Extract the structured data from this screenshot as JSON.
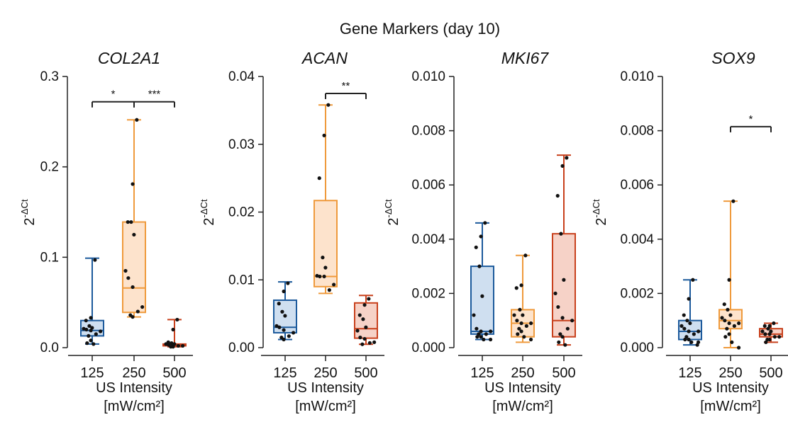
{
  "figure_title": "Gene Markers (day 10)",
  "colors": {
    "125": {
      "stroke": "#1c5a9c",
      "fill": "#cfdff0"
    },
    "250": {
      "stroke": "#ef9a3c",
      "fill": "#fde3cc"
    },
    "500": {
      "stroke": "#c8401c",
      "fill": "#f6d2c7"
    },
    "point": "#111111",
    "axis": "#222222"
  },
  "chart_data": [
    {
      "type": "box",
      "title": "COL2A1",
      "ylabel": {
        "base": "2",
        "sup": "-ΔCt"
      },
      "xlabel": [
        "US Intensity",
        "[mW/cm²]"
      ],
      "categories": [
        "125",
        "250",
        "500"
      ],
      "ylim": [
        0,
        0.3
      ],
      "yticks": [
        0.0,
        0.1,
        0.2,
        0.3
      ],
      "yticklabels": [
        "0.0",
        "0.1",
        "0.2",
        "0.3"
      ],
      "boxes": [
        {
          "cat": "125",
          "min": 0.004,
          "q1": 0.013,
          "median": 0.019,
          "q3": 0.03,
          "max": 0.099
        },
        {
          "cat": "250",
          "min": 0.034,
          "q1": 0.039,
          "median": 0.066,
          "q3": 0.139,
          "max": 0.252
        },
        {
          "cat": "500",
          "min": 0.001,
          "q1": 0.002,
          "median": 0.003,
          "q3": 0.004,
          "max": 0.031
        }
      ],
      "points": {
        "125": [
          0.097,
          0.033,
          0.03,
          0.024,
          0.022,
          0.021,
          0.02,
          0.019,
          0.018,
          0.015,
          0.013,
          0.008,
          0.005,
          0.004
        ],
        "250": [
          0.252,
          0.181,
          0.139,
          0.139,
          0.125,
          0.085,
          0.077,
          0.067,
          0.045,
          0.04,
          0.036,
          0.034
        ],
        "500": [
          0.031,
          0.02,
          0.006,
          0.005,
          0.004,
          0.004,
          0.003,
          0.003,
          0.002,
          0.002,
          0.001,
          0.001
        ]
      },
      "significance": [
        {
          "from": "125",
          "to": "250",
          "label": "*",
          "y": 0.272
        },
        {
          "from": "250",
          "to": "500",
          "label": "***",
          "y": 0.272
        }
      ]
    },
    {
      "type": "box",
      "title": "ACAN",
      "ylabel": {
        "base": "2",
        "sup": "-ΔCt"
      },
      "xlabel": [
        "US Intensity",
        "[mW/cm²]"
      ],
      "categories": [
        "125",
        "250",
        "500"
      ],
      "ylim": [
        0,
        0.04
      ],
      "yticks": [
        0.0,
        0.01,
        0.02,
        0.03,
        0.04
      ],
      "yticklabels": [
        "0.00",
        "0.01",
        "0.02",
        "0.03",
        "0.04"
      ],
      "boxes": [
        {
          "cat": "125",
          "min": 0.0012,
          "q1": 0.0022,
          "median": 0.003,
          "q3": 0.007,
          "max": 0.0097
        },
        {
          "cat": "250",
          "min": 0.008,
          "q1": 0.009,
          "median": 0.0105,
          "q3": 0.0217,
          "max": 0.0358
        },
        {
          "cat": "500",
          "min": 0.0005,
          "q1": 0.0014,
          "median": 0.0028,
          "q3": 0.0066,
          "max": 0.0077
        }
      ],
      "points": {
        "125": [
          0.0095,
          0.0083,
          0.0065,
          0.0053,
          0.0047,
          0.0032,
          0.003,
          0.0026,
          0.0022,
          0.0017,
          0.0015,
          0.0012
        ],
        "250": [
          0.0358,
          0.0313,
          0.025,
          0.0133,
          0.0118,
          0.0106,
          0.0105,
          0.0105,
          0.0093,
          0.0085
        ],
        "500": [
          0.0072,
          0.0063,
          0.0048,
          0.0042,
          0.003,
          0.0025,
          0.0015,
          0.0013,
          0.0008,
          0.0007,
          0.0005
        ]
      },
      "significance": [
        {
          "from": "250",
          "to": "500",
          "label": "**",
          "y": 0.0375
        }
      ]
    },
    {
      "type": "box",
      "title": "MKI67",
      "ylabel": {
        "base": "2",
        "sup": "-ΔCt"
      },
      "xlabel": [
        "US Intensity",
        "[mW/cm²]"
      ],
      "categories": [
        "125",
        "250",
        "500"
      ],
      "ylim": [
        0,
        0.01
      ],
      "yticks": [
        0.0,
        0.002,
        0.004,
        0.006,
        0.008,
        0.01
      ],
      "yticklabels": [
        "0.000",
        "0.002",
        "0.004",
        "0.006",
        "0.008",
        "0.010"
      ],
      "boxes": [
        {
          "cat": "125",
          "min": 0.0003,
          "q1": 0.0005,
          "median": 0.0006,
          "q3": 0.003,
          "max": 0.0046
        },
        {
          "cat": "250",
          "min": 0.0002,
          "q1": 0.0004,
          "median": 0.0009,
          "q3": 0.0014,
          "max": 0.0034
        },
        {
          "cat": "500",
          "min": 0.0001,
          "q1": 0.0004,
          "median": 0.001,
          "q3": 0.0042,
          "max": 0.0071
        }
      ],
      "points": {
        "125": [
          0.0046,
          0.0041,
          0.0037,
          0.003,
          0.0019,
          0.0012,
          0.0007,
          0.0006,
          0.0006,
          0.0005,
          0.0005,
          0.0004,
          0.0004,
          0.0003,
          0.0003
        ],
        "250": [
          0.0034,
          0.0023,
          0.0022,
          0.0014,
          0.0012,
          0.0012,
          0.001,
          0.0009,
          0.0009,
          0.0008,
          0.0007,
          0.0006,
          0.0005,
          0.0004,
          0.0003
        ],
        "500": [
          0.007,
          0.0067,
          0.0056,
          0.0042,
          0.0025,
          0.002,
          0.0015,
          0.0011,
          0.001,
          0.0007,
          0.0005,
          0.0004,
          0.0002,
          0.0001
        ]
      },
      "significance": []
    },
    {
      "type": "box",
      "title": "SOX9",
      "ylabel": {
        "base": "2",
        "sup": "-ΔCt"
      },
      "xlabel": [
        "US Intensity",
        "[mW/cm²]"
      ],
      "categories": [
        "125",
        "250",
        "500"
      ],
      "ylim": [
        0,
        0.01
      ],
      "yticks": [
        0.0,
        0.002,
        0.004,
        0.006,
        0.008,
        0.01
      ],
      "yticklabels": [
        "0.000",
        "0.002",
        "0.004",
        "0.006",
        "0.008",
        "0.010"
      ],
      "boxes": [
        {
          "cat": "125",
          "min": 0.0001,
          "q1": 0.0003,
          "median": 0.0006,
          "q3": 0.001,
          "max": 0.0025
        },
        {
          "cat": "250",
          "min": 0.0,
          "q1": 0.0007,
          "median": 0.001,
          "q3": 0.0014,
          "max": 0.0054
        },
        {
          "cat": "500",
          "min": 0.0002,
          "q1": 0.0004,
          "median": 0.0005,
          "q3": 0.0007,
          "max": 0.0009
        }
      ],
      "points": {
        "125": [
          0.0025,
          0.0018,
          0.0012,
          0.001,
          0.0009,
          0.0008,
          0.0007,
          0.0006,
          0.0006,
          0.0005,
          0.0004,
          0.0003,
          0.0003,
          0.0002,
          0.0002,
          0.0001
        ],
        "250": [
          0.0054,
          0.0025,
          0.0016,
          0.0014,
          0.0012,
          0.0011,
          0.001,
          0.0009,
          0.0009,
          0.0008,
          0.0007,
          0.0005,
          0.0004,
          0.0002,
          0.0
        ],
        "500": [
          0.0009,
          0.0008,
          0.0008,
          0.0007,
          0.0006,
          0.0006,
          0.0005,
          0.0005,
          0.0004,
          0.0004,
          0.0003,
          0.0003,
          0.0002
        ]
      },
      "significance": [
        {
          "from": "250",
          "to": "500",
          "label": "*",
          "y": 0.00815
        }
      ]
    }
  ]
}
